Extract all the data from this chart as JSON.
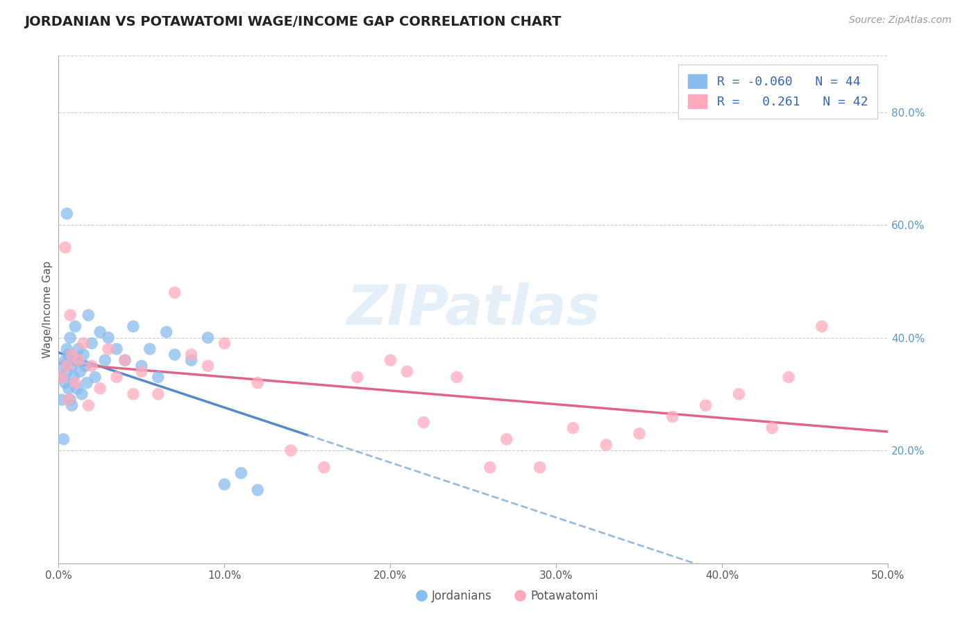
{
  "title": "JORDANIAN VS POTAWATOMI WAGE/INCOME GAP CORRELATION CHART",
  "source": "Source: ZipAtlas.com",
  "ylabel": "Wage/Income Gap",
  "x_min": 0.0,
  "x_max": 0.5,
  "y_min": 0.0,
  "y_max": 0.9,
  "x_ticks": [
    0.0,
    0.1,
    0.2,
    0.3,
    0.4,
    0.5
  ],
  "x_tick_labels": [
    "0.0%",
    "10.0%",
    "20.0%",
    "30.0%",
    "40.0%",
    "50.0%"
  ],
  "y_ticks": [
    0.0,
    0.2,
    0.4,
    0.6,
    0.8
  ],
  "y_tick_labels_right": [
    "",
    "20.0%",
    "40.0%",
    "60.0%",
    "80.0%"
  ],
  "jordanian_color": "#88BBEE",
  "potawatomi_color": "#FFAABB",
  "R_jordanian": -0.06,
  "N_jordanian": 44,
  "R_potawatomi": 0.261,
  "N_potawatomi": 42,
  "watermark": "ZIPatlas",
  "watermark_color": "#AACCEE",
  "legend_label_jordanian": "Jordanians",
  "legend_label_potawatomi": "Potawatomi",
  "background_color": "#FFFFFF",
  "grid_color": "#CCCCCC",
  "trendline_jordanian_solid_color": "#5588CC",
  "trendline_jordanian_dash_color": "#99BBDD",
  "trendline_potawatomi_color": "#DD6688",
  "jordanian_x": [
    0.001,
    0.002,
    0.003,
    0.003,
    0.004,
    0.004,
    0.005,
    0.005,
    0.006,
    0.006,
    0.007,
    0.007,
    0.008,
    0.008,
    0.009,
    0.01,
    0.01,
    0.011,
    0.012,
    0.013,
    0.014,
    0.015,
    0.016,
    0.017,
    0.018,
    0.02,
    0.022,
    0.025,
    0.028,
    0.03,
    0.035,
    0.04,
    0.045,
    0.05,
    0.055,
    0.06,
    0.065,
    0.07,
    0.08,
    0.09,
    0.1,
    0.11,
    0.12,
    0.005
  ],
  "jordanian_y": [
    0.33,
    0.29,
    0.35,
    0.22,
    0.32,
    0.36,
    0.34,
    0.38,
    0.31,
    0.37,
    0.29,
    0.4,
    0.35,
    0.28,
    0.33,
    0.36,
    0.42,
    0.31,
    0.38,
    0.34,
    0.3,
    0.37,
    0.35,
    0.32,
    0.44,
    0.39,
    0.33,
    0.41,
    0.36,
    0.4,
    0.38,
    0.36,
    0.42,
    0.35,
    0.38,
    0.33,
    0.41,
    0.37,
    0.36,
    0.4,
    0.14,
    0.16,
    0.13,
    0.62
  ],
  "potawatomi_x": [
    0.002,
    0.004,
    0.005,
    0.006,
    0.007,
    0.008,
    0.01,
    0.012,
    0.015,
    0.018,
    0.02,
    0.025,
    0.03,
    0.035,
    0.04,
    0.045,
    0.05,
    0.06,
    0.07,
    0.08,
    0.09,
    0.1,
    0.12,
    0.14,
    0.16,
    0.18,
    0.2,
    0.21,
    0.22,
    0.24,
    0.26,
    0.27,
    0.29,
    0.31,
    0.33,
    0.35,
    0.37,
    0.39,
    0.41,
    0.43,
    0.44,
    0.46
  ],
  "potawatomi_y": [
    0.33,
    0.56,
    0.35,
    0.29,
    0.44,
    0.37,
    0.32,
    0.36,
    0.39,
    0.28,
    0.35,
    0.31,
    0.38,
    0.33,
    0.36,
    0.3,
    0.34,
    0.3,
    0.48,
    0.37,
    0.35,
    0.39,
    0.32,
    0.2,
    0.17,
    0.33,
    0.36,
    0.34,
    0.25,
    0.33,
    0.17,
    0.22,
    0.17,
    0.24,
    0.21,
    0.23,
    0.26,
    0.28,
    0.3,
    0.24,
    0.33,
    0.42
  ],
  "legend_color": "#3366BB",
  "source_color": "#999999"
}
